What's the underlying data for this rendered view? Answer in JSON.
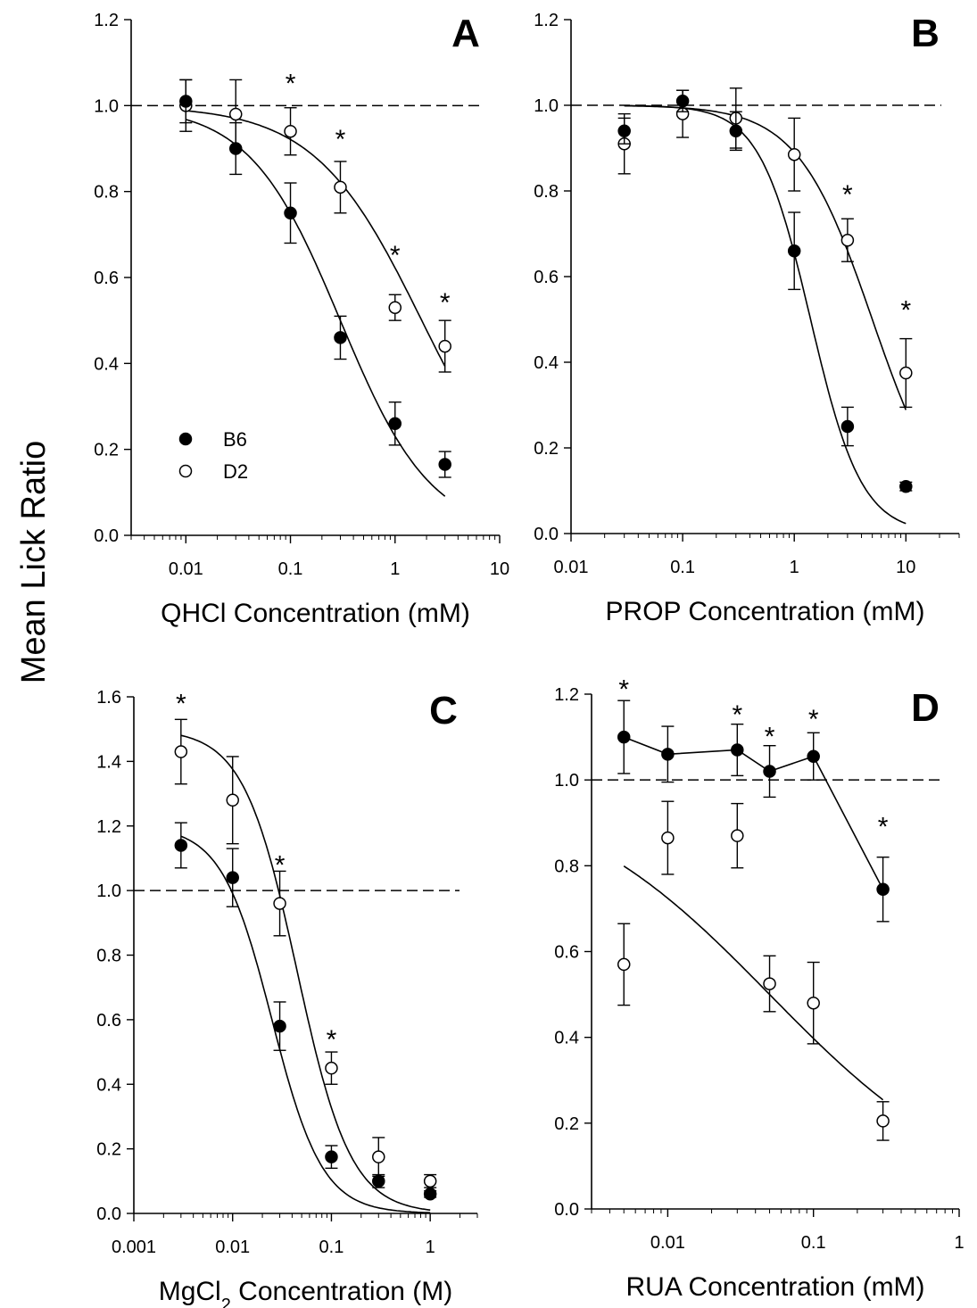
{
  "ylabel": "Mean Lick Ratio",
  "legend": [
    {
      "label": "B6",
      "marker": "filled-circle"
    },
    {
      "label": "D2",
      "marker": "open-circle"
    }
  ],
  "chart_data": [
    {
      "id": "A",
      "type": "scatter",
      "panel_label": "A",
      "xlabel": "QHCl Concentration (mM)",
      "xscale": "log",
      "xlim": [
        0.003,
        10
      ],
      "ylim": [
        0,
        1.2
      ],
      "xticks": [
        0.01,
        0.1,
        1,
        10
      ],
      "xtick_labels": [
        "0.01",
        "0.1",
        "1",
        "10"
      ],
      "yticks": [
        0,
        0.2,
        0.4,
        0.6,
        0.8,
        1.0,
        1.2
      ],
      "ytick_labels": [
        "0.0",
        "0.2",
        "0.4",
        "0.6",
        "0.8",
        "1.0",
        "1.2"
      ],
      "reference_line": 1.0,
      "legend_location": "lower-left",
      "series": [
        {
          "name": "B6",
          "marker": "filled",
          "x": [
            0.01,
            0.03,
            0.1,
            0.3,
            1,
            3
          ],
          "y": [
            1.01,
            0.9,
            0.75,
            0.46,
            0.26,
            0.165
          ],
          "err": [
            0.05,
            0.06,
            0.07,
            0.05,
            0.05,
            0.03
          ]
        },
        {
          "name": "D2",
          "marker": "open",
          "x": [
            0.01,
            0.03,
            0.1,
            0.3,
            1,
            3
          ],
          "y": [
            1.0,
            0.98,
            0.94,
            0.81,
            0.53,
            0.44
          ],
          "err": [
            0.06,
            0.08,
            0.055,
            0.06,
            0.03,
            0.06
          ]
        }
      ],
      "fits": [
        {
          "series": "B6",
          "top": 1.0,
          "ec50": 0.3,
          "hill": 1.0,
          "x_range": [
            0.01,
            3
          ]
        },
        {
          "series": "D2",
          "top": 1.0,
          "ec50": 1.8,
          "hill": 0.85,
          "x_range": [
            0.01,
            3
          ]
        }
      ],
      "significance": {
        "symbol": "*",
        "x": [
          0.1,
          0.3,
          1,
          3
        ],
        "y": [
          1.06,
          0.93,
          0.66,
          0.55
        ]
      }
    },
    {
      "id": "B",
      "type": "scatter",
      "panel_label": "B",
      "xlabel": "PROP Concentration (mM)",
      "xscale": "log",
      "xlim": [
        0.01,
        30
      ],
      "ylim": [
        0,
        1.2
      ],
      "xticks": [
        0.01,
        0.1,
        1,
        10
      ],
      "xtick_labels": [
        "0.01",
        "0.1",
        "1",
        "10"
      ],
      "yticks": [
        0,
        0.2,
        0.4,
        0.6,
        0.8,
        1.0,
        1.2
      ],
      "ytick_labels": [
        "0.0",
        "0.2",
        "0.4",
        "0.6",
        "0.8",
        "1.0",
        "1.2"
      ],
      "reference_line": 1.0,
      "series": [
        {
          "name": "B6",
          "marker": "filled",
          "x": [
            0.03,
            0.1,
            0.3,
            1,
            3,
            10
          ],
          "y": [
            0.94,
            1.01,
            0.94,
            0.66,
            0.25,
            0.11
          ],
          "err": [
            0.03,
            0.025,
            0.045,
            0.09,
            0.045,
            0.01
          ]
        },
        {
          "name": "D2",
          "marker": "open",
          "x": [
            0.03,
            0.1,
            0.3,
            1,
            3,
            10
          ],
          "y": [
            0.91,
            0.98,
            0.97,
            0.885,
            0.685,
            0.375
          ],
          "err": [
            0.07,
            0.055,
            0.07,
            0.085,
            0.05,
            0.08
          ]
        }
      ],
      "fits": [
        {
          "series": "B6",
          "top": 1.0,
          "ec50": 1.4,
          "hill": 1.9,
          "x_range": [
            0.03,
            10
          ]
        },
        {
          "series": "D2",
          "top": 1.0,
          "ec50": 5.0,
          "hill": 1.3,
          "x_range": [
            0.03,
            10
          ]
        }
      ],
      "significance": {
        "symbol": "*",
        "x": [
          3,
          10
        ],
        "y": [
          0.8,
          0.53
        ]
      }
    },
    {
      "id": "C",
      "type": "scatter",
      "panel_label": "C",
      "xlabel": "MgCl",
      "xlabel_subscript": "2",
      "xlabel_suffix": " Concentration (M)",
      "xscale": "log",
      "xlim": [
        0.001,
        3
      ],
      "ylim": [
        0,
        1.6
      ],
      "xticks": [
        0.001,
        0.01,
        0.1,
        1
      ],
      "xtick_labels": [
        "0.001",
        "0.01",
        "0.1",
        "1"
      ],
      "yticks": [
        0,
        0.2,
        0.4,
        0.6,
        0.8,
        1.0,
        1.2,
        1.4,
        1.6
      ],
      "ytick_labels": [
        "0.0",
        "0.2",
        "0.4",
        "0.6",
        "0.8",
        "1.0",
        "1.2",
        "1.4",
        "1.6"
      ],
      "reference_line": 1.0,
      "series": [
        {
          "name": "B6",
          "marker": "filled",
          "x": [
            0.003,
            0.01,
            0.03,
            0.1,
            0.3,
            1
          ],
          "y": [
            1.14,
            1.04,
            0.58,
            0.175,
            0.1,
            0.06
          ],
          "err": [
            0.07,
            0.09,
            0.075,
            0.035,
            0.02,
            0.01
          ]
        },
        {
          "name": "D2",
          "marker": "open",
          "x": [
            0.003,
            0.01,
            0.03,
            0.1,
            0.3,
            1
          ],
          "y": [
            1.43,
            1.28,
            0.96,
            0.45,
            0.175,
            0.1
          ],
          "err": [
            0.1,
            0.135,
            0.1,
            0.05,
            0.06,
            0.02
          ]
        }
      ],
      "fits": [
        {
          "series": "B6",
          "top": 1.2,
          "ec50": 0.025,
          "hill": 1.7,
          "x_range": [
            0.003,
            1
          ]
        },
        {
          "series": "D2",
          "top": 1.5,
          "ec50": 0.045,
          "hill": 1.6,
          "x_range": [
            0.003,
            1
          ]
        }
      ],
      "significance": {
        "symbol": "*",
        "x": [
          0.003,
          0.03,
          0.1
        ],
        "y": [
          1.59,
          1.09,
          0.55
        ]
      }
    },
    {
      "id": "D",
      "type": "scatter",
      "panel_label": "D",
      "xlabel": "RUA Concentration (mM)",
      "xscale": "log",
      "xlim": [
        0.003,
        1
      ],
      "ylim": [
        0,
        1.2
      ],
      "xticks": [
        0.01,
        0.1,
        1
      ],
      "xtick_labels": [
        "0.01",
        "0.1",
        "1"
      ],
      "yticks": [
        0,
        0.2,
        0.4,
        0.6,
        0.8,
        1.0,
        1.2
      ],
      "ytick_labels": [
        "0.0",
        "0.2",
        "0.4",
        "0.6",
        "0.8",
        "1.0",
        "1.2"
      ],
      "reference_line": 1.0,
      "series": [
        {
          "name": "B6",
          "marker": "filled",
          "connect": true,
          "x": [
            0.005,
            0.01,
            0.03,
            0.05,
            0.1,
            0.3
          ],
          "y": [
            1.1,
            1.06,
            1.07,
            1.02,
            1.055,
            0.745
          ],
          "err": [
            0.085,
            0.065,
            0.06,
            0.06,
            0.055,
            0.075
          ]
        },
        {
          "name": "D2",
          "marker": "open",
          "x": [
            0.005,
            0.01,
            0.03,
            0.05,
            0.1,
            0.3
          ],
          "y": [
            0.57,
            0.865,
            0.87,
            0.525,
            0.48,
            0.205
          ],
          "err": [
            0.095,
            0.085,
            0.075,
            0.065,
            0.095,
            0.045
          ]
        }
      ],
      "fits": [
        {
          "series": "D2",
          "top": 1.0,
          "ec50": 0.05,
          "hill": 0.6,
          "x_range": [
            0.005,
            0.3
          ]
        }
      ],
      "significance": {
        "symbol": "*",
        "x": [
          0.005,
          0.03,
          0.05,
          0.1,
          0.3
        ],
        "y": [
          1.22,
          1.16,
          1.11,
          1.15,
          0.9
        ]
      }
    }
  ]
}
